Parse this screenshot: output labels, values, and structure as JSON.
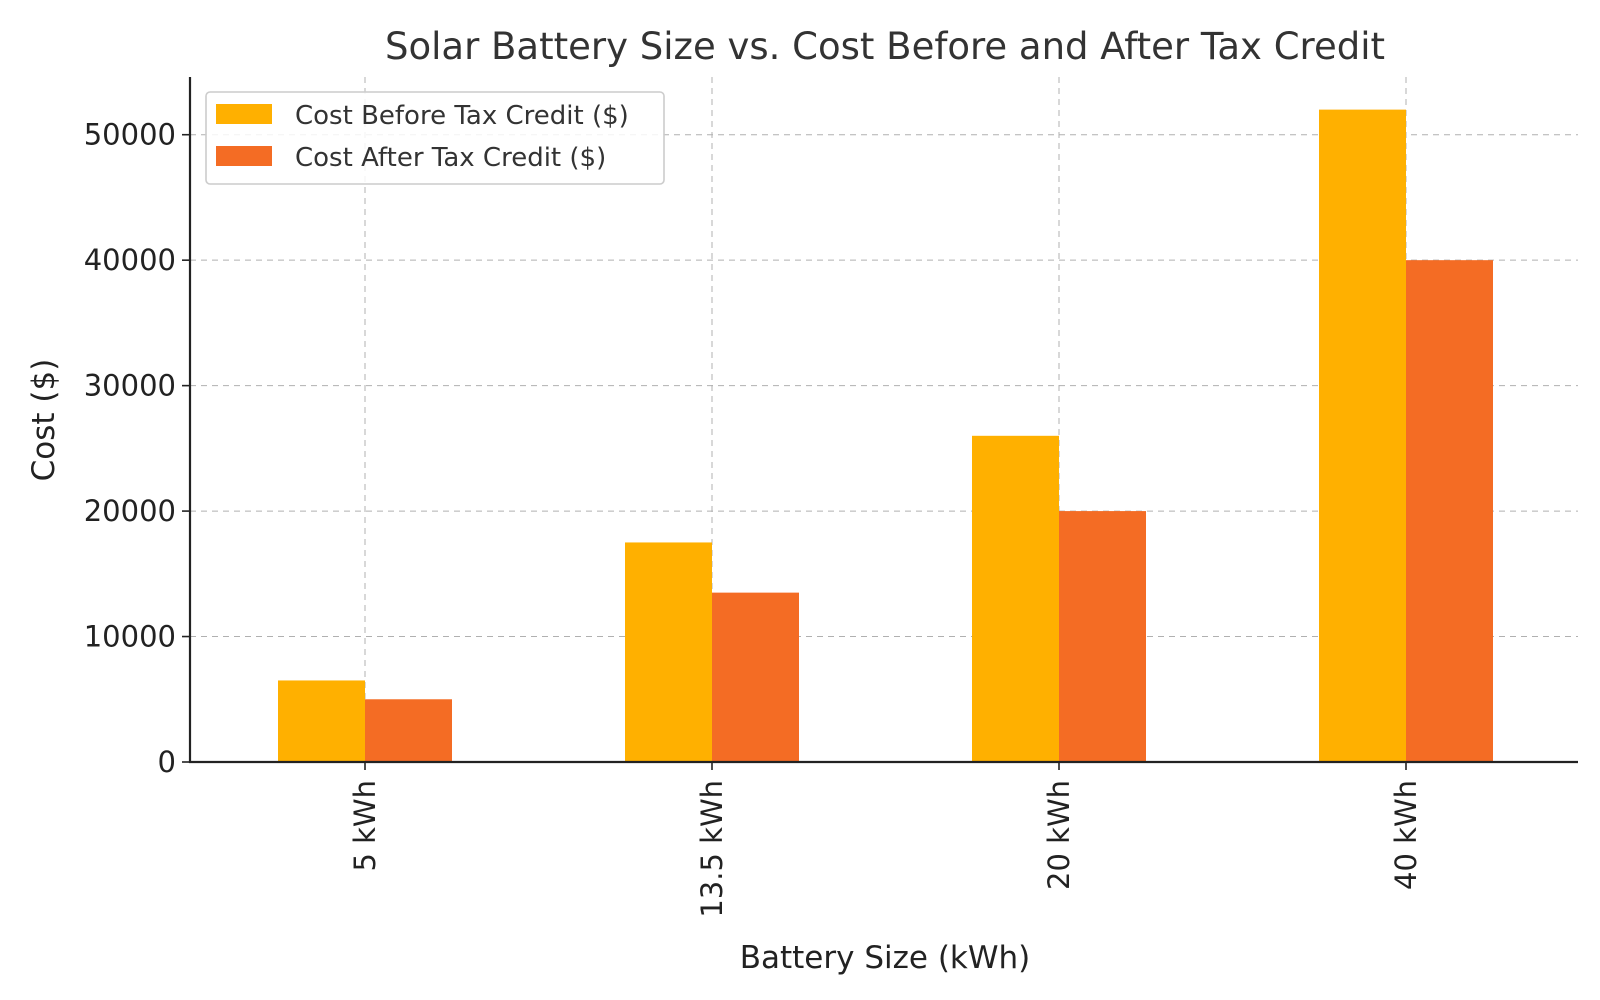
{
  "chart_data": {
    "type": "bar",
    "title": "Solar Battery Size vs. Cost Before and After Tax Credit",
    "xlabel": "Battery Size (kWh)",
    "ylabel": "Cost ($)",
    "categories": [
      "5 kWh",
      "13.5 kWh",
      "20 kWh",
      "40 kWh"
    ],
    "series": [
      {
        "name": "Cost Before Tax Credit ($)",
        "color": "#FFB000",
        "values": [
          6500,
          17500,
          26000,
          52000
        ]
      },
      {
        "name": "Cost After Tax Credit ($)",
        "color": "#F46C24",
        "values": [
          5000,
          13500,
          20000,
          40000
        ]
      }
    ],
    "ylim": [
      0,
      54600
    ],
    "yticks": [
      0,
      10000,
      20000,
      30000,
      40000,
      50000
    ],
    "grid": true,
    "legend_position": "top-left"
  }
}
